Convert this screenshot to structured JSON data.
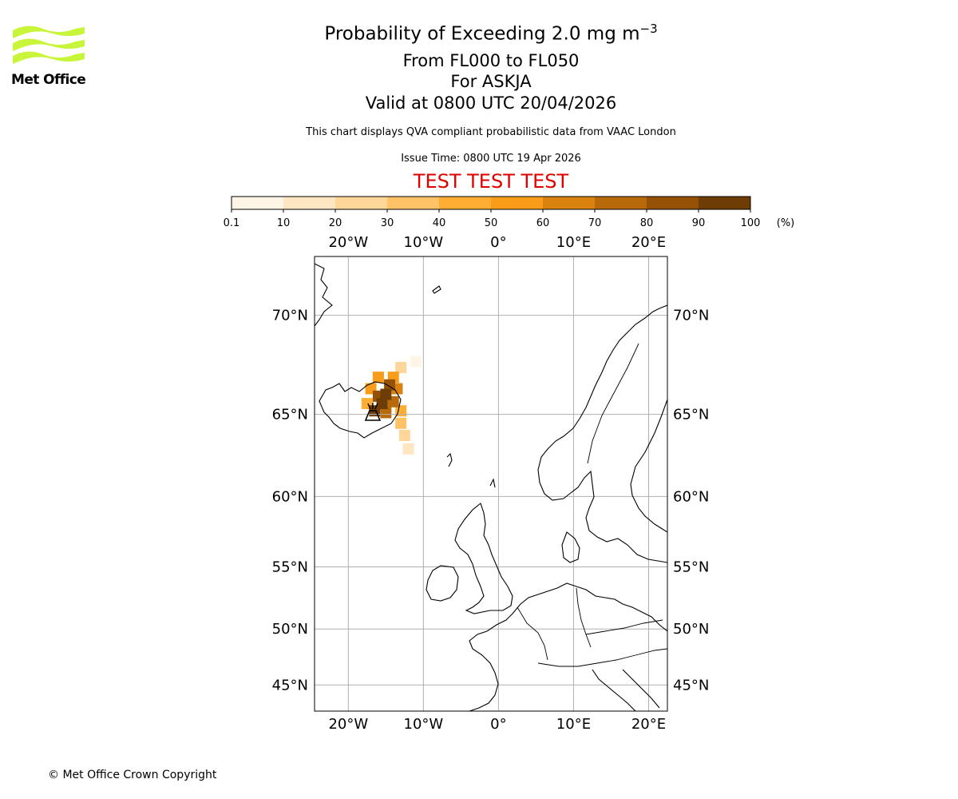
{
  "logo": {
    "text": "Met Office",
    "brand_color": "#c8f53a"
  },
  "header": {
    "title_main": "Probability of Exceeding 2.0 mg m",
    "title_exp": "−3",
    "levels": "From FL000 to FL050",
    "volcano": "For ASKJA",
    "valid": "Valid at 0800 UTC 20/04/2026",
    "description": "This chart displays QVA compliant probabilistic data from VAAC London",
    "issue": "Issue Time: 0800 UTC 19 Apr 2026",
    "test_banner": "TEST TEST TEST",
    "test_color": "#e00000"
  },
  "colorbar": {
    "ticks": [
      "0.1",
      "10",
      "20",
      "30",
      "40",
      "50",
      "60",
      "70",
      "80",
      "90",
      "100"
    ],
    "unit": "(%)",
    "colors": [
      "#fff5e6",
      "#ffe6c2",
      "#ffd699",
      "#ffc266",
      "#ffad33",
      "#f89c1a",
      "#d9820f",
      "#b86a0a",
      "#955207",
      "#6e3c05"
    ]
  },
  "map": {
    "lon_labels": [
      "20°W",
      "10°W",
      "0°",
      "10°E",
      "20°E"
    ],
    "lat_labels": [
      "70°N",
      "65°N",
      "60°N",
      "55°N",
      "50°N",
      "45°N"
    ],
    "grid_color": "#b0b0b0",
    "plume": [
      {
        "lon": -16.5,
        "lat": 65.2,
        "p": 92
      },
      {
        "lon": -15.5,
        "lat": 65.6,
        "p": 95
      },
      {
        "lon": -15.0,
        "lat": 66.1,
        "p": 90
      },
      {
        "lon": -14.5,
        "lat": 66.6,
        "p": 85
      },
      {
        "lon": -16.0,
        "lat": 66.0,
        "p": 80
      },
      {
        "lon": -15.0,
        "lat": 65.1,
        "p": 75
      },
      {
        "lon": -14.0,
        "lat": 65.7,
        "p": 70
      },
      {
        "lon": -13.5,
        "lat": 66.4,
        "p": 60
      },
      {
        "lon": -17.0,
        "lat": 66.4,
        "p": 55
      },
      {
        "lon": -16.0,
        "lat": 67.0,
        "p": 55
      },
      {
        "lon": -14.0,
        "lat": 67.0,
        "p": 50
      },
      {
        "lon": -13.0,
        "lat": 65.2,
        "p": 45
      },
      {
        "lon": -13.0,
        "lat": 64.5,
        "p": 35
      },
      {
        "lon": -12.5,
        "lat": 63.8,
        "p": 25
      },
      {
        "lon": -12.0,
        "lat": 63.0,
        "p": 15
      },
      {
        "lon": -17.5,
        "lat": 65.6,
        "p": 40
      },
      {
        "lon": -13.0,
        "lat": 67.5,
        "p": 20
      },
      {
        "lon": -11.0,
        "lat": 67.8,
        "p": 8
      }
    ],
    "volcano": {
      "name": "ASKJA",
      "lon": -16.75,
      "lat": 65.03
    }
  },
  "footer": {
    "copyright": "© Met Office Crown Copyright"
  }
}
